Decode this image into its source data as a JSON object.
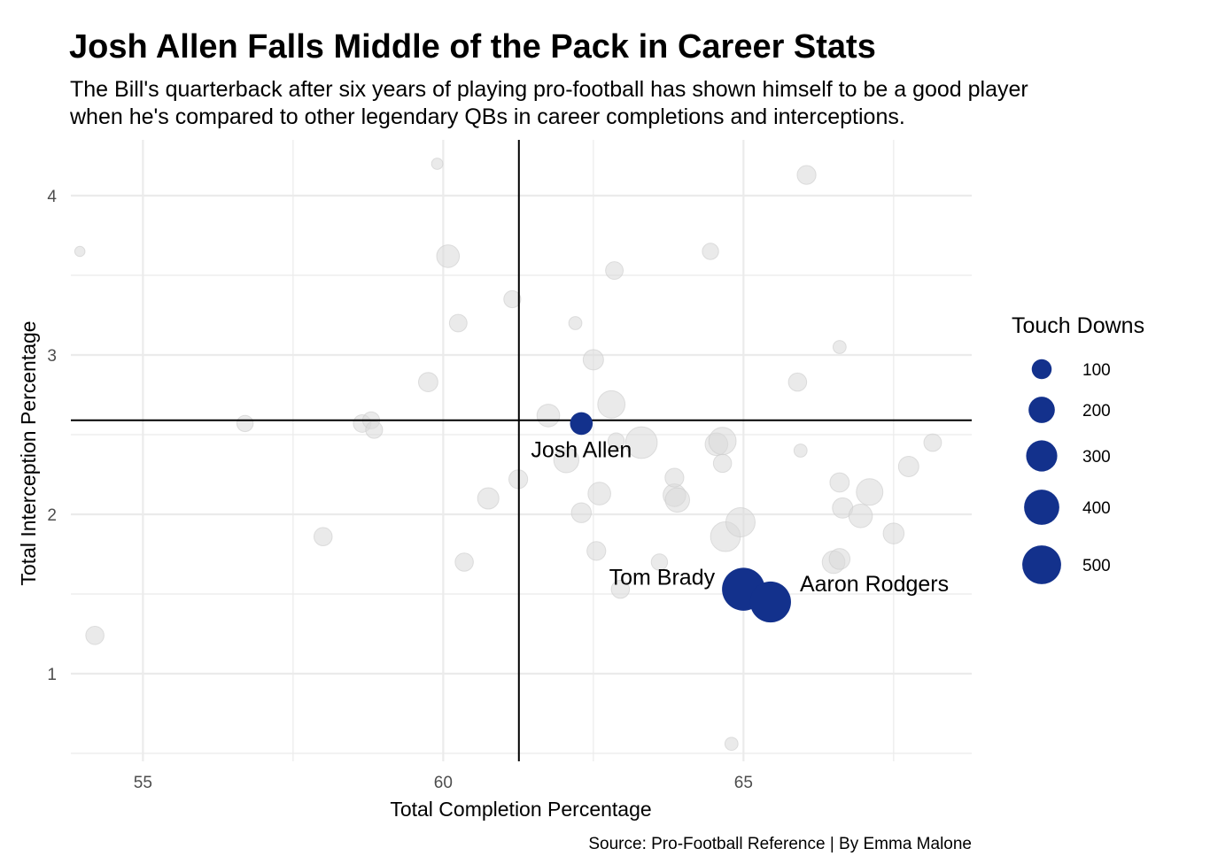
{
  "chart_data": {
    "type": "scatter",
    "title": "Josh Allen Falls Middle of the Pack in Career Stats",
    "subtitle_lines": [
      "The Bill's quarterback after six years of playing pro-football has shown himself to be a good player",
      "when he's compared to other legendary QBs in career completions and interceptions."
    ],
    "xlabel": "Total Completion Percentage",
    "ylabel": "Total Interception Percentage",
    "caption": "Source: Pro-Football Reference | By Emma Malone",
    "xlim": [
      53.8,
      68.8
    ],
    "ylim": [
      0.45,
      4.35
    ],
    "x_ticks": [
      "55",
      "60",
      "65"
    ],
    "y_ticks": [
      "1",
      "2",
      "3",
      "4"
    ],
    "grid": true,
    "reference_lines": {
      "x": 61.26,
      "y": 2.59
    },
    "size_legend": {
      "title": "Touch Downs",
      "placement": "right",
      "values": [
        100,
        200,
        300,
        400,
        500
      ],
      "labels": [
        "100",
        "200",
        "300",
        "400",
        "500"
      ]
    },
    "colors": {
      "highlight": "#13318c",
      "other": "#d9d9d9",
      "reference": "#000000",
      "grid": "#ebebeb"
    },
    "highlighted": [
      {
        "name": "Josh Allen",
        "x": 62.3,
        "y": 2.57,
        "td": 100
      },
      {
        "name": "Tom Brady",
        "x": 65.0,
        "y": 1.53,
        "td": 470
      },
      {
        "name": "Aaron Rodgers",
        "x": 65.45,
        "y": 1.45,
        "td": 420
      }
    ],
    "points": [
      {
        "x": 53.95,
        "y": 3.65,
        "td": 8
      },
      {
        "x": 54.2,
        "y": 1.24,
        "td": 55
      },
      {
        "x": 56.7,
        "y": 2.57,
        "td": 40
      },
      {
        "x": 58.0,
        "y": 1.86,
        "td": 55
      },
      {
        "x": 58.65,
        "y": 2.57,
        "td": 50
      },
      {
        "x": 58.8,
        "y": 2.59,
        "td": 45
      },
      {
        "x": 58.85,
        "y": 2.53,
        "td": 45
      },
      {
        "x": 59.75,
        "y": 2.83,
        "td": 65
      },
      {
        "x": 59.9,
        "y": 4.2,
        "td": 12
      },
      {
        "x": 60.08,
        "y": 3.62,
        "td": 100
      },
      {
        "x": 60.25,
        "y": 3.2,
        "td": 50
      },
      {
        "x": 60.35,
        "y": 1.7,
        "td": 55
      },
      {
        "x": 60.75,
        "y": 2.1,
        "td": 85
      },
      {
        "x": 61.15,
        "y": 3.35,
        "td": 45
      },
      {
        "x": 61.25,
        "y": 2.22,
        "td": 60
      },
      {
        "x": 61.75,
        "y": 2.62,
        "td": 100
      },
      {
        "x": 62.05,
        "y": 2.34,
        "td": 130
      },
      {
        "x": 62.2,
        "y": 3.2,
        "td": 20
      },
      {
        "x": 62.3,
        "y": 2.01,
        "td": 70
      },
      {
        "x": 62.5,
        "y": 2.97,
        "td": 75
      },
      {
        "x": 62.55,
        "y": 1.77,
        "td": 60
      },
      {
        "x": 62.6,
        "y": 2.13,
        "td": 100
      },
      {
        "x": 62.8,
        "y": 2.69,
        "td": 160
      },
      {
        "x": 62.88,
        "y": 2.46,
        "td": 40
      },
      {
        "x": 62.85,
        "y": 3.53,
        "td": 50
      },
      {
        "x": 62.95,
        "y": 1.53,
        "td": 55
      },
      {
        "x": 63.3,
        "y": 2.45,
        "td": 230
      },
      {
        "x": 63.6,
        "y": 1.7,
        "td": 40
      },
      {
        "x": 63.85,
        "y": 2.12,
        "td": 100
      },
      {
        "x": 63.9,
        "y": 2.09,
        "td": 120
      },
      {
        "x": 63.85,
        "y": 2.23,
        "td": 60
      },
      {
        "x": 64.45,
        "y": 3.65,
        "td": 40
      },
      {
        "x": 64.55,
        "y": 2.44,
        "td": 100
      },
      {
        "x": 64.65,
        "y": 2.46,
        "td": 160
      },
      {
        "x": 64.65,
        "y": 2.32,
        "td": 55
      },
      {
        "x": 64.7,
        "y": 1.86,
        "td": 200
      },
      {
        "x": 64.95,
        "y": 1.95,
        "td": 190
      },
      {
        "x": 64.8,
        "y": 0.56,
        "td": 20
      },
      {
        "x": 65.9,
        "y": 2.83,
        "td": 55
      },
      {
        "x": 65.95,
        "y": 2.4,
        "td": 20
      },
      {
        "x": 66.05,
        "y": 4.13,
        "td": 60
      },
      {
        "x": 66.5,
        "y": 1.7,
        "td": 100
      },
      {
        "x": 66.6,
        "y": 1.72,
        "td": 80
      },
      {
        "x": 66.6,
        "y": 2.2,
        "td": 65
      },
      {
        "x": 66.6,
        "y": 3.05,
        "td": 20
      },
      {
        "x": 66.65,
        "y": 2.04,
        "td": 75
      },
      {
        "x": 66.95,
        "y": 1.99,
        "td": 110
      },
      {
        "x": 67.1,
        "y": 2.14,
        "td": 150
      },
      {
        "x": 67.5,
        "y": 1.88,
        "td": 80
      },
      {
        "x": 67.75,
        "y": 2.3,
        "td": 75
      },
      {
        "x": 68.15,
        "y": 2.45,
        "td": 50
      }
    ]
  }
}
